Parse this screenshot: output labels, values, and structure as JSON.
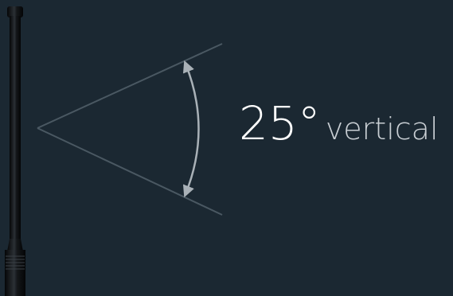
{
  "diagram": {
    "angle": "25°",
    "orientation": "vertical"
  },
  "colors": {
    "background": "#1b2832",
    "beam_lines": "#4a5862",
    "arc": "#a9b1b7",
    "antenna": "#0a0c0e",
    "value_text": "#ffffff",
    "unit_text": "#c9cfd4"
  },
  "icons": {
    "antenna": "antenna-icon",
    "arc": "double-arrow-arc"
  }
}
